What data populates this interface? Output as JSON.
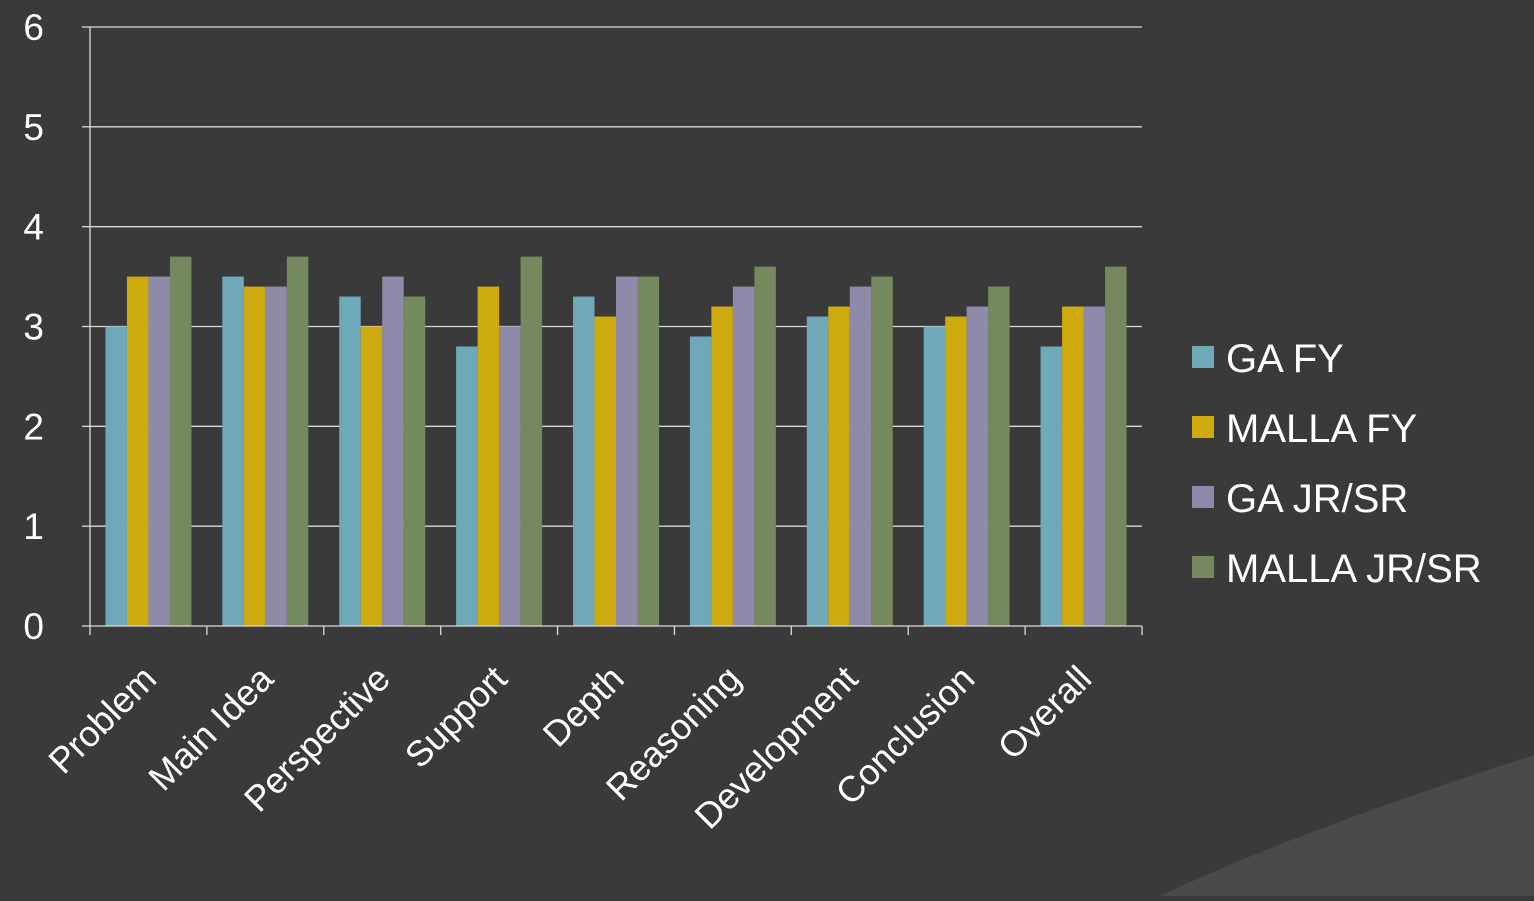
{
  "colors": {
    "background": "#3a3a3a",
    "corner_shape": "#4a4a4a",
    "gridline": "#d9d9d9",
    "axis": "#d9d9d9",
    "text": "#ffffff"
  },
  "chart_data": {
    "type": "bar",
    "title": "",
    "xlabel": "",
    "ylabel": "",
    "ylim": [
      0,
      6
    ],
    "yticks": [
      "0",
      "1",
      "2",
      "3",
      "4",
      "5",
      "6"
    ],
    "grid": true,
    "legend_position": "right",
    "categories": [
      "Problem",
      "Main Idea",
      "Perspective",
      "Support",
      "Depth",
      "Reasoning",
      "Development",
      "Conclusion",
      "Overall"
    ],
    "series": [
      {
        "name": "GA FY",
        "color": "#6fa8b8",
        "values": [
          3.0,
          3.5,
          3.3,
          2.8,
          3.3,
          2.9,
          3.1,
          3.0,
          2.8
        ]
      },
      {
        "name": "MALLA FY",
        "color": "#cdaa0e",
        "values": [
          3.5,
          3.4,
          3.0,
          3.4,
          3.1,
          3.2,
          3.2,
          3.1,
          3.2
        ]
      },
      {
        "name": "GA JR/SR",
        "color": "#8f8aaa",
        "values": [
          3.5,
          3.4,
          3.5,
          3.0,
          3.5,
          3.4,
          3.4,
          3.2,
          3.2
        ]
      },
      {
        "name": "MALLA JR/SR",
        "color": "#748a5e",
        "values": [
          3.7,
          3.7,
          3.3,
          3.7,
          3.5,
          3.6,
          3.5,
          3.4,
          3.6
        ]
      }
    ]
  }
}
